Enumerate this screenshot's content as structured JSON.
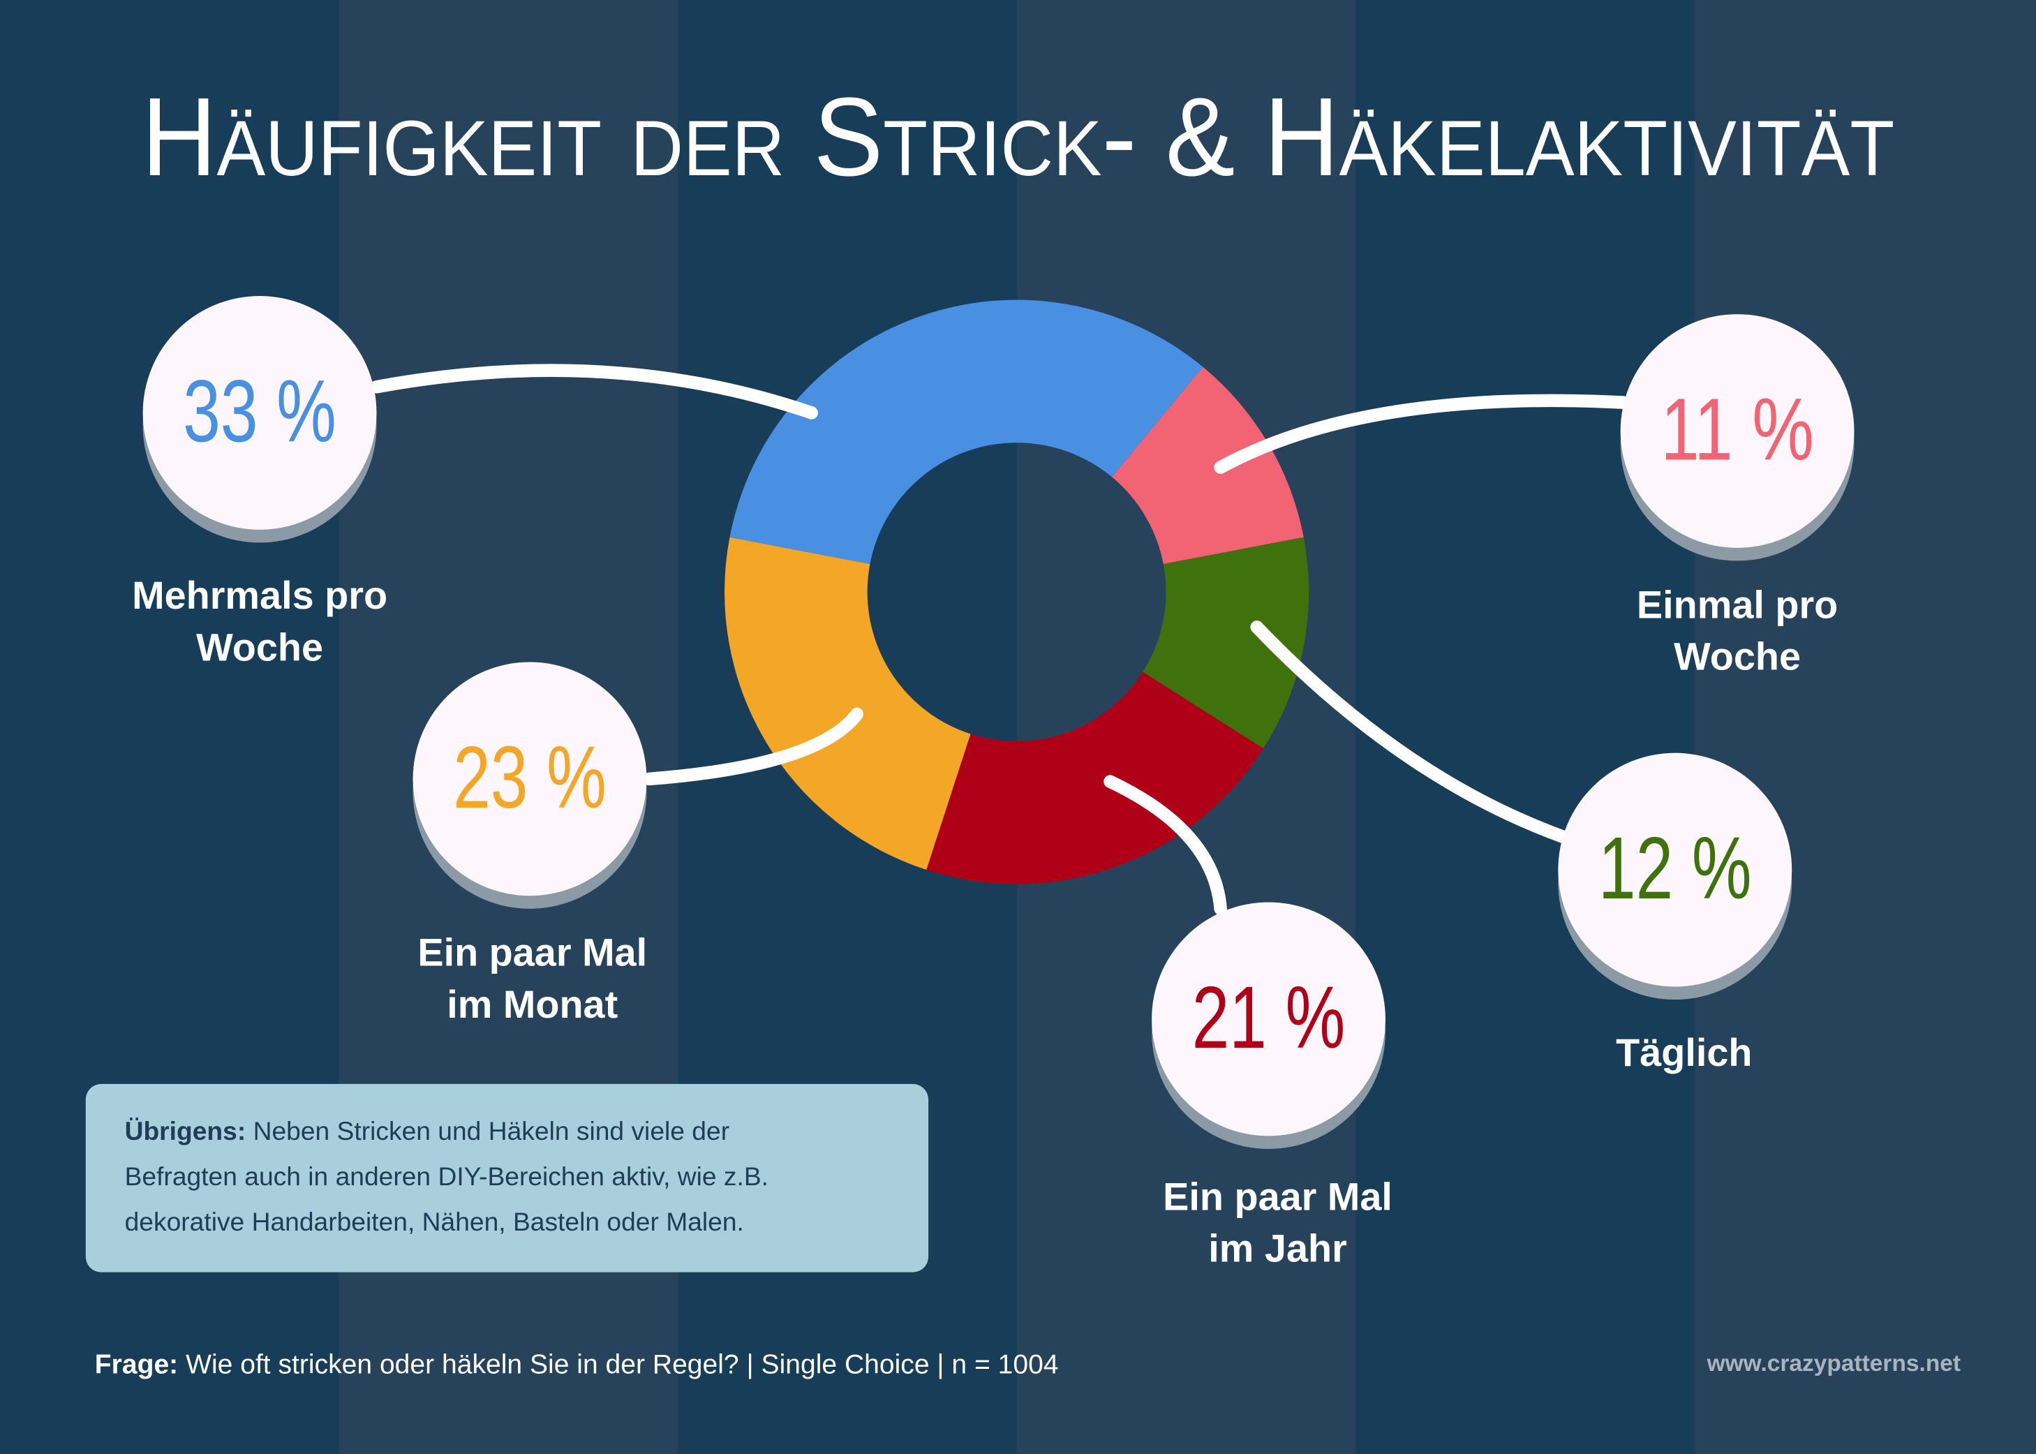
{
  "chart_data": {
    "type": "donut",
    "title": "Häufigkeit der Strick- & Häkelaktivität",
    "categories": [
      "Einmal pro Woche",
      "Täglich",
      "Ein paar Mal im Jahr",
      "Ein paar Mal im Monat",
      "Mehrmals pro Woche"
    ],
    "values": [
      11,
      12,
      21,
      23,
      33
    ],
    "value_labels": [
      "11 %",
      "12 %",
      "21 %",
      "23 %",
      "33 %"
    ],
    "colors": [
      "#f26373",
      "#3f720c",
      "#b00018",
      "#f4a626",
      "#4a90e2"
    ]
  },
  "note": {
    "lead": "Übrigens:",
    "lines": [
      "Neben Stricken und Häkeln sind viele der",
      "Befragten auch in anderen DIY-Bereichen aktiv, wie z.B.",
      "dekorative Handarbeiten, Nähen, Basteln oder Malen."
    ]
  },
  "footer": {
    "lead": "Frage:",
    "text": "Wie oft stricken oder häkeln Sie in der Regel? | Single Choice | n = 1004",
    "source": "www.crazypatterns.net"
  }
}
